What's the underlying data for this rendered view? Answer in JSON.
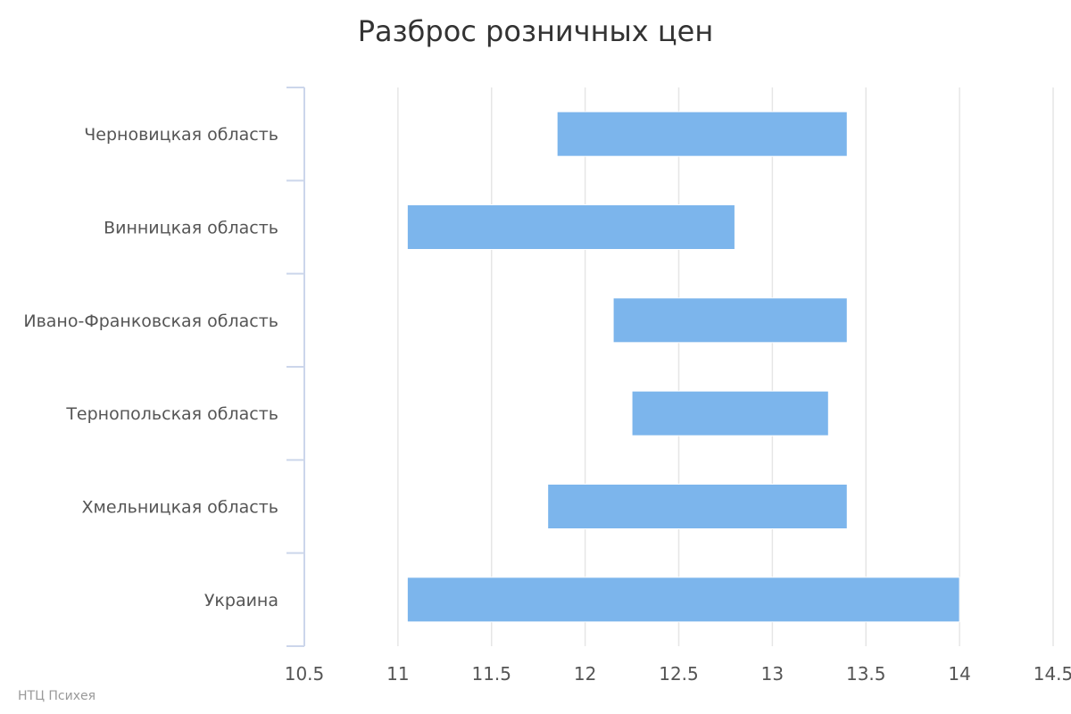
{
  "chart_data": {
    "type": "bar",
    "orientation": "horizontal",
    "range_bars": true,
    "title": "Разброс розничных цен",
    "xlabel": "",
    "ylabel": "",
    "xlim": [
      10.5,
      14.5
    ],
    "xticks": [
      10.5,
      11,
      11.5,
      12,
      12.5,
      13,
      13.5,
      14,
      14.5
    ],
    "xtick_labels": [
      "10.5",
      "11",
      "11.5",
      "12",
      "12.5",
      "13",
      "13.5",
      "14",
      "14.5"
    ],
    "grid": true,
    "legend": "none",
    "bar_color": "#7cb5ec",
    "categories": [
      "Черновицкая область",
      "Винницкая область",
      "Ивано-Франковская область",
      "Тернопольская область",
      "Хмельницкая область",
      "Украина"
    ],
    "series": [
      {
        "low": [
          11.85,
          11.05,
          12.15,
          12.25,
          11.8,
          11.05
        ],
        "high": [
          13.4,
          12.8,
          13.4,
          13.3,
          13.4,
          14.0
        ]
      }
    ]
  },
  "credit": "НТЦ Психея"
}
